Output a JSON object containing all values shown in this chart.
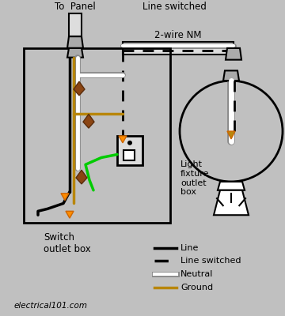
{
  "background_color": "#c0c0c0",
  "fig_width": 3.6,
  "fig_height": 4.0,
  "dpi": 100,
  "colors": {
    "black": "#000000",
    "white": "#ffffff",
    "ground": "#b8860b",
    "green": "#00cc00",
    "brown": "#8B4513",
    "orange_tip": "#ff8c00",
    "gray_light": "#aaaaaa",
    "gray_mid": "#888888",
    "cable_sheath": "#dddddd"
  },
  "labels": {
    "to_panel": "To  Panel",
    "line_switched": "Line switched",
    "nm_cable": "2-wire NM",
    "switch_outlet_box": "Switch\noutlet box",
    "light_fixture": "Light\nfixture\noutlet\nbox",
    "website": "electrical101.com",
    "legend_line": "Line",
    "legend_dashed": "Line switched",
    "legend_neutral": "Neutral",
    "legend_ground": "Ground"
  }
}
